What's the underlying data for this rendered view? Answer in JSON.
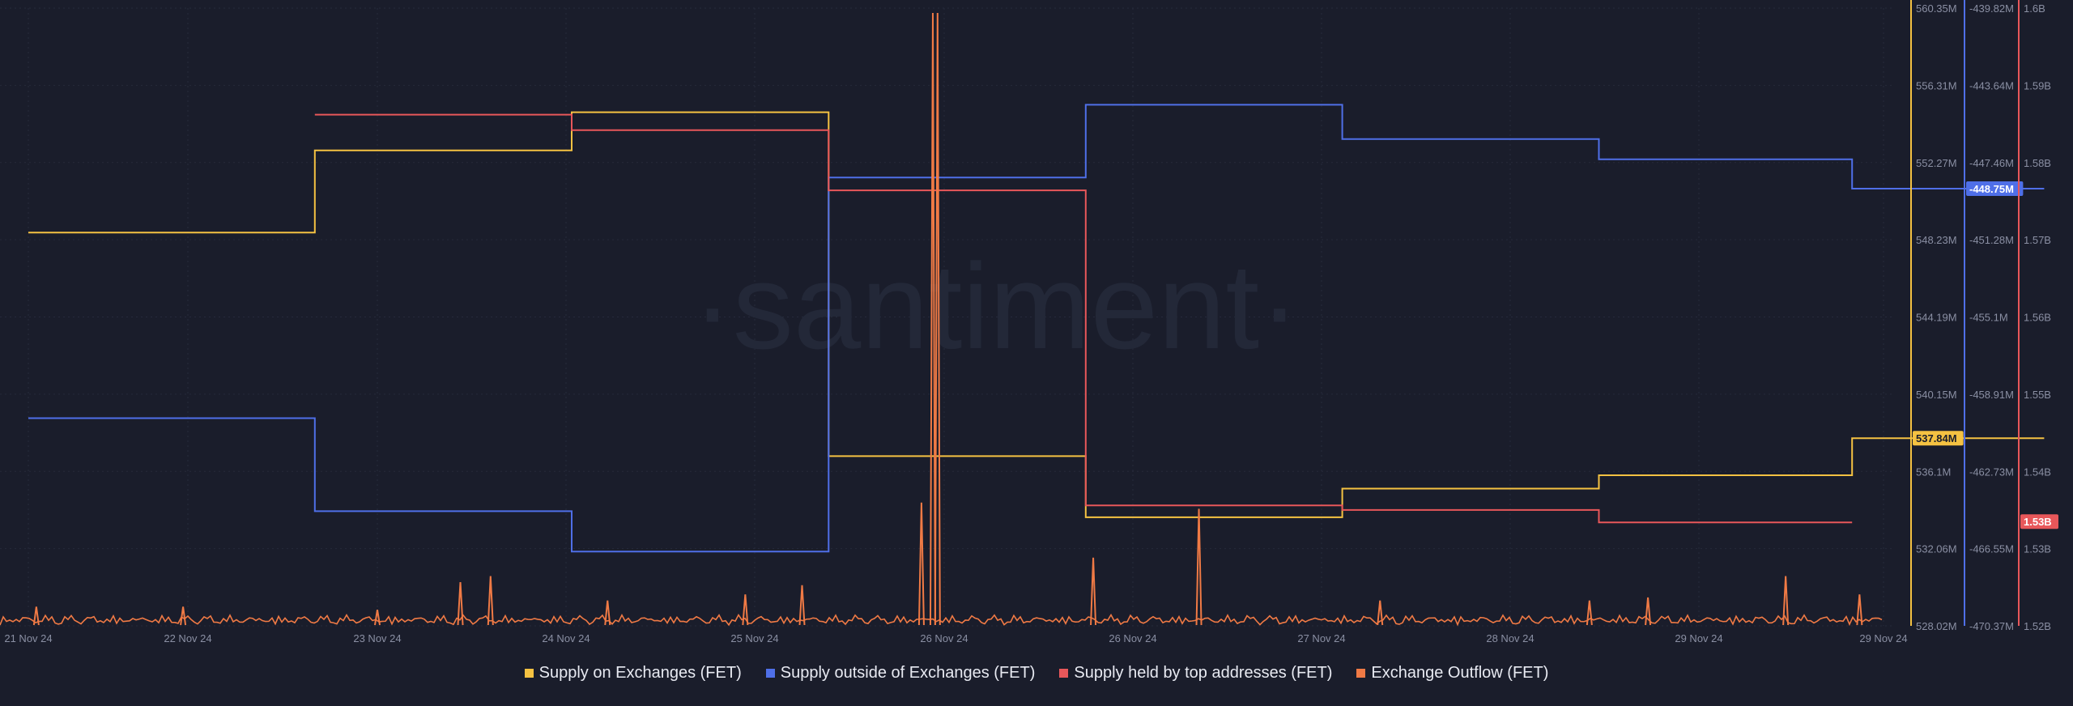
{
  "watermark": "·santiment·",
  "colors": {
    "background": "#1a1d2b",
    "grid": "#262a3b",
    "axis_text": "#8a8fa3",
    "supply_on_exchanges": "#f5c242",
    "supply_outside_exchanges": "#4f6fe8",
    "supply_top_addresses": "#e8575a",
    "exchange_outflow": "#f07a45"
  },
  "chart_data": {
    "type": "line",
    "x_ticks": [
      "21 Nov 24",
      "22 Nov 24",
      "23 Nov 24",
      "24 Nov 24",
      "25 Nov 24",
      "26 Nov 24",
      "26 Nov 24",
      "27 Nov 24",
      "28 Nov 24",
      "29 Nov 24",
      "29 Nov 24"
    ],
    "axes": [
      {
        "series": "Supply on Exchanges (FET)",
        "ticks": [
          "560.35M",
          "556.31M",
          "552.27M",
          "548.23M",
          "544.19M",
          "540.15M",
          "536.1M",
          "532.06M",
          "528.02M"
        ],
        "range": [
          528.02,
          560.35
        ],
        "current_label": "537.84M",
        "current_value": 537.84
      },
      {
        "series": "Supply outside of Exchanges (FET)",
        "ticks": [
          "-439.82M",
          "-443.64M",
          "-447.46M",
          "-451.28M",
          "-455.1M",
          "-458.91M",
          "-462.73M",
          "-466.55M",
          "-470.37M"
        ],
        "range": [
          -470.37,
          -439.82
        ],
        "current_label": "-448.75M",
        "current_value": -448.75
      },
      {
        "series": "Supply held by top addresses (FET)",
        "ticks": [
          "1.6B",
          "1.59B",
          "1.58B",
          "1.57B",
          "1.56B",
          "1.55B",
          "1.54B",
          "1.53B",
          "1.52B"
        ],
        "range": [
          1.52,
          1.6
        ],
        "current_label": "1.53B",
        "current_value": 1.5335
      }
    ],
    "series": [
      {
        "name": "Supply on Exchanges (FET)",
        "axis": 0,
        "step": true,
        "points": [
          [
            0,
            548.6
          ],
          [
            1.67,
            548.6
          ],
          [
            1.67,
            552.9
          ],
          [
            3.03,
            552.9
          ],
          [
            3.03,
            554.9
          ],
          [
            4.39,
            554.9
          ],
          [
            4.39,
            536.9
          ],
          [
            5.75,
            536.9
          ],
          [
            5.75,
            533.7
          ],
          [
            7.11,
            533.7
          ],
          [
            7.11,
            535.2
          ],
          [
            8.47,
            535.2
          ],
          [
            8.47,
            535.9
          ],
          [
            9.83,
            535.9
          ],
          [
            9.83,
            537.84
          ],
          [
            10.87,
            537.84
          ]
        ]
      },
      {
        "name": "Supply outside of Exchanges (FET)",
        "axis": 1,
        "step": true,
        "points": [
          [
            0,
            -460.1
          ],
          [
            1.67,
            -460.1
          ],
          [
            1.67,
            -464.7
          ],
          [
            3.03,
            -464.7
          ],
          [
            3.03,
            -466.7
          ],
          [
            4.39,
            -466.7
          ],
          [
            4.39,
            -448.2
          ],
          [
            5.75,
            -448.2
          ],
          [
            5.75,
            -444.6
          ],
          [
            7.11,
            -444.6
          ],
          [
            7.11,
            -446.3
          ],
          [
            8.47,
            -446.3
          ],
          [
            8.47,
            -447.3
          ],
          [
            9.83,
            -447.3
          ],
          [
            9.83,
            -448.75
          ],
          [
            10.87,
            -448.75
          ]
        ]
      },
      {
        "name": "Supply held by top addresses (FET)",
        "axis": 2,
        "step": true,
        "points": [
          [
            1.67,
            1.5862
          ],
          [
            3.03,
            1.5862
          ],
          [
            3.03,
            1.5842
          ],
          [
            4.39,
            1.5842
          ],
          [
            4.39,
            1.5764
          ],
          [
            5.75,
            1.5764
          ],
          [
            5.75,
            1.5356
          ],
          [
            7.11,
            1.5356
          ],
          [
            7.11,
            1.535
          ],
          [
            8.47,
            1.535
          ],
          [
            8.47,
            1.5334
          ],
          [
            9.83,
            1.5334
          ]
        ]
      },
      {
        "name": "Exchange Outflow (FET)",
        "axis": "bottom",
        "type": "spikes",
        "points": [
          [
            0.05,
            0.03
          ],
          [
            0.97,
            0.03
          ],
          [
            2.0,
            0.025
          ],
          [
            2.44,
            0.07
          ],
          [
            2.6,
            0.08
          ],
          [
            3.22,
            0.04
          ],
          [
            3.95,
            0.05
          ],
          [
            4.25,
            0.065
          ],
          [
            4.88,
            0.2
          ],
          [
            4.94,
            1.0
          ],
          [
            4.965,
            1.0
          ],
          [
            5.79,
            0.11
          ],
          [
            6.35,
            0.19
          ],
          [
            7.31,
            0.04
          ],
          [
            8.42,
            0.04
          ],
          [
            8.73,
            0.045
          ],
          [
            9.47,
            0.08
          ],
          [
            9.87,
            0.05
          ]
        ]
      }
    ]
  },
  "legend": [
    {
      "label": "Supply on Exchanges (FET)",
      "color": "#f5c242"
    },
    {
      "label": "Supply outside of Exchanges (FET)",
      "color": "#4f6fe8"
    },
    {
      "label": "Supply held by top addresses (FET)",
      "color": "#e8575a"
    },
    {
      "label": "Exchange Outflow (FET)",
      "color": "#f07a45"
    }
  ]
}
